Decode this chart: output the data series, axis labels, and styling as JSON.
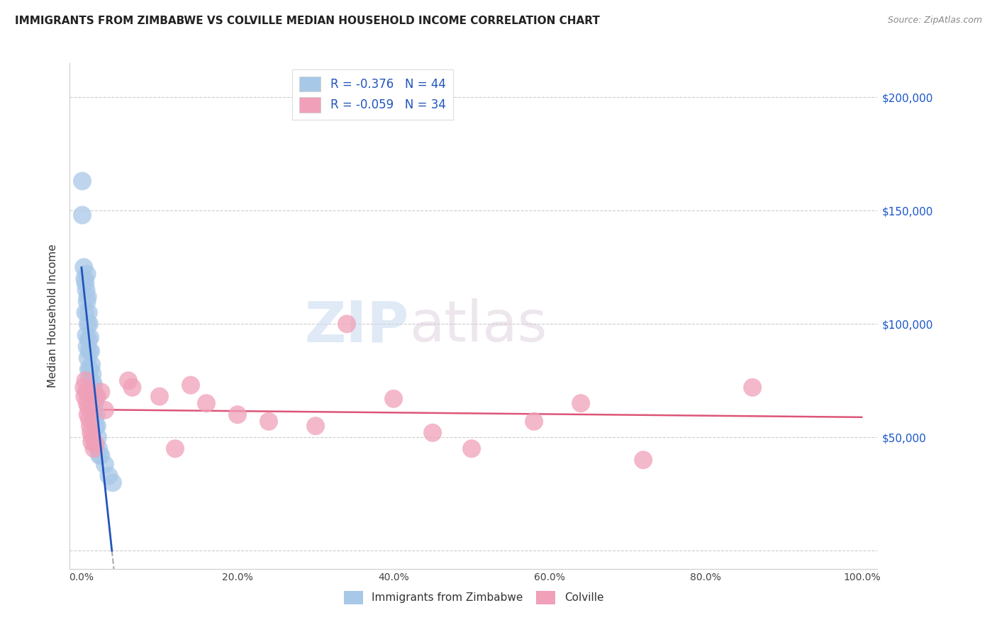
{
  "title": "IMMIGRANTS FROM ZIMBABWE VS COLVILLE MEDIAN HOUSEHOLD INCOME CORRELATION CHART",
  "source": "Source: ZipAtlas.com",
  "ylabel": "Median Household Income",
  "blue_label": "Immigrants from Zimbabwe",
  "pink_label": "Colville",
  "blue_R": "-0.376",
  "blue_N": "44",
  "pink_R": "-0.059",
  "pink_N": "34",
  "blue_color": "#a8c8e8",
  "pink_color": "#f0a0b8",
  "blue_line_color": "#2255bb",
  "pink_line_color": "#dd5577",
  "blue_x": [
    0.001,
    0.001,
    0.003,
    0.004,
    0.005,
    0.005,
    0.006,
    0.006,
    0.007,
    0.007,
    0.007,
    0.008,
    0.008,
    0.008,
    0.009,
    0.009,
    0.009,
    0.01,
    0.01,
    0.01,
    0.011,
    0.011,
    0.012,
    0.012,
    0.013,
    0.013,
    0.014,
    0.014,
    0.015,
    0.015,
    0.016,
    0.016,
    0.017,
    0.018,
    0.018,
    0.019,
    0.02,
    0.021,
    0.022,
    0.023,
    0.025,
    0.03,
    0.035,
    0.04
  ],
  "blue_y": [
    163000,
    148000,
    125000,
    120000,
    118000,
    105000,
    115000,
    95000,
    122000,
    110000,
    90000,
    112000,
    100000,
    85000,
    105000,
    93000,
    80000,
    100000,
    88000,
    76000,
    94000,
    80000,
    88000,
    72000,
    82000,
    70000,
    78000,
    65000,
    74000,
    60000,
    72000,
    58000,
    65000,
    68000,
    55000,
    60000,
    55000,
    50000,
    45000,
    42000,
    42000,
    38000,
    33000,
    30000
  ],
  "pink_x": [
    0.003,
    0.004,
    0.005,
    0.006,
    0.007,
    0.008,
    0.009,
    0.01,
    0.011,
    0.012,
    0.013,
    0.014,
    0.016,
    0.018,
    0.02,
    0.025,
    0.03,
    0.06,
    0.065,
    0.1,
    0.12,
    0.14,
    0.16,
    0.2,
    0.24,
    0.3,
    0.34,
    0.4,
    0.45,
    0.5,
    0.58,
    0.64,
    0.72,
    0.86
  ],
  "pink_y": [
    72000,
    68000,
    75000,
    70000,
    65000,
    60000,
    63000,
    58000,
    55000,
    52000,
    48000,
    50000,
    45000,
    47000,
    68000,
    70000,
    62000,
    75000,
    72000,
    68000,
    45000,
    73000,
    65000,
    60000,
    57000,
    55000,
    100000,
    67000,
    52000,
    45000,
    57000,
    65000,
    40000,
    72000
  ],
  "yticks": [
    0,
    50000,
    100000,
    150000,
    200000
  ],
  "ytick_labels": [
    "",
    "$50,000",
    "$100,000",
    "$150,000",
    "$200,000"
  ],
  "xticks": [
    0.0,
    0.2,
    0.4,
    0.6,
    0.8,
    1.0
  ],
  "xtick_labels": [
    "0.0%",
    "20.0%",
    "40.0%",
    "60.0%",
    "80.0%",
    "100.0%"
  ]
}
